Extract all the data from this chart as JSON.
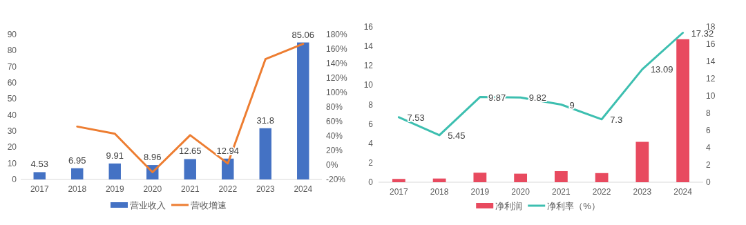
{
  "chart_data": [
    {
      "type": "bar",
      "categories": [
        "2017",
        "2018",
        "2019",
        "2020",
        "2021",
        "2022",
        "2023",
        "2024"
      ],
      "series": [
        {
          "name": "营业收入",
          "color": "#4472c4",
          "values": [
            4.53,
            6.95,
            9.91,
            8.96,
            12.65,
            12.94,
            31.8,
            85.06
          ],
          "value_labels": [
            "4.53",
            "6.95",
            "9.91",
            "8.96",
            "12.65",
            "12.94",
            "31.8",
            "85.06"
          ]
        },
        {
          "name": "营收增速",
          "type": "line",
          "axis": "y2",
          "color": "#ed7d31",
          "values": [
            null,
            53,
            43,
            -10,
            41,
            2,
            146,
            167
          ]
        }
      ],
      "ylim": [
        0,
        90
      ],
      "yticks": [
        0,
        10,
        20,
        30,
        40,
        50,
        60,
        70,
        80,
        90
      ],
      "y2lim": [
        -20,
        180
      ],
      "y2ticks": [
        {
          "value": -20,
          "label": "-20%"
        },
        {
          "value": 0,
          "label": "0%"
        },
        {
          "value": 20,
          "label": "20%"
        },
        {
          "value": 40,
          "label": "40%"
        },
        {
          "value": 60,
          "label": "60%"
        },
        {
          "value": 80,
          "label": "80%"
        },
        {
          "value": 100,
          "label": "100%"
        },
        {
          "value": 120,
          "label": "120%"
        },
        {
          "value": 140,
          "label": "140%"
        },
        {
          "value": 160,
          "label": "160%"
        },
        {
          "value": 180,
          "label": "180%"
        }
      ],
      "legend": "bottom",
      "marker": "none"
    },
    {
      "type": "bar",
      "categories": [
        "2017",
        "2018",
        "2019",
        "2020",
        "2021",
        "2022",
        "2023",
        "2024"
      ],
      "series": [
        {
          "name": "净利润",
          "color": "#e84a5f",
          "values": [
            0.34,
            0.38,
            0.98,
            0.88,
            1.14,
            0.94,
            4.16,
            14.73
          ]
        },
        {
          "name": "净利率（%）",
          "type": "line",
          "axis": "y2",
          "color": "#3dbfb0",
          "values": [
            7.53,
            5.45,
            9.87,
            9.82,
            9,
            7.3,
            13.09,
            17.32
          ],
          "value_labels": [
            "7.53",
            "5.45",
            "9.87",
            "9.82",
            "9",
            "7.3",
            "13.09",
            "17.32"
          ]
        }
      ],
      "ylim": [
        0,
        16
      ],
      "yticks": [
        0,
        2,
        4,
        6,
        8,
        10,
        12,
        14,
        16
      ],
      "y2lim": [
        0,
        18
      ],
      "y2ticks": [
        0,
        2,
        4,
        6,
        8,
        10,
        12,
        14,
        16,
        18
      ],
      "legend": "bottom",
      "marker": "none"
    }
  ]
}
